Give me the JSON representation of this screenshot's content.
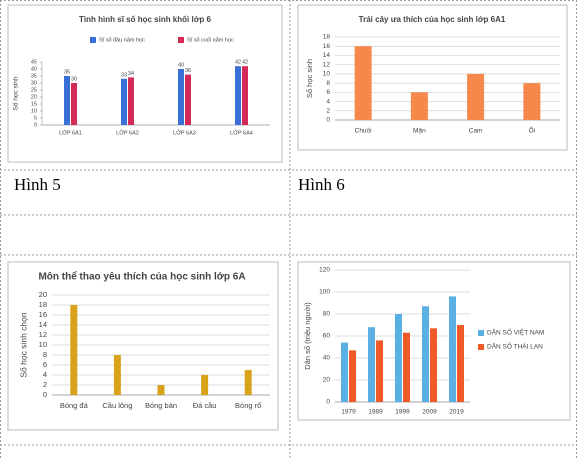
{
  "captions": [
    "Hình 5",
    "Hình 6"
  ],
  "chart_data": [
    {
      "type": "bar",
      "title": "Tình hình sĩ số học sinh khối lớp 6",
      "y_label": "Số học sinh",
      "categories": [
        "LỚP 6A1",
        "LỚP 6A2",
        "LỚP 6A3",
        "LỚP 6A4"
      ],
      "series": [
        {
          "name": "Sĩ số đầu năm học",
          "color": "#3a6fd8",
          "values": [
            35,
            33,
            40,
            42
          ]
        },
        {
          "name": "Sĩ số cuối năm học",
          "color": "#d42a5a",
          "values": [
            30,
            34,
            36,
            42
          ]
        }
      ],
      "ylim": [
        0,
        45
      ],
      "yticks": [
        0,
        5,
        10,
        15,
        20,
        25,
        30,
        35,
        40,
        45
      ],
      "grid": false,
      "legend": "top",
      "data_labels": true
    },
    {
      "type": "bar",
      "title": "Trái cây ưa thích của học sinh lớp 6A1",
      "y_label": "Số học sinh",
      "categories": [
        "Chuối",
        "Mận",
        "Cam",
        "Ổi"
      ],
      "values": [
        16,
        6,
        10,
        8
      ],
      "color": "#f5884a",
      "ylim": [
        0,
        18
      ],
      "yticks": [
        0,
        2,
        4,
        6,
        8,
        10,
        12,
        14,
        16,
        18
      ],
      "grid": true
    },
    {
      "type": "bar",
      "title": "Môn thể thao yêu thích của học sinh lớp 6A",
      "y_label": "Số học sinh chọn",
      "categories": [
        "Bóng đá",
        "Cầu lông",
        "Bóng bàn",
        "Đá cầu",
        "Bóng rổ"
      ],
      "values": [
        18,
        8,
        2,
        4,
        5
      ],
      "color": "#d9a21b",
      "ylim": [
        0,
        20
      ],
      "yticks": [
        0,
        2,
        4,
        6,
        8,
        10,
        12,
        14,
        16,
        18,
        20
      ],
      "grid": true
    },
    {
      "type": "bar",
      "y_label": "Dân số (triệu người)",
      "categories": [
        "1979",
        "1989",
        "1999",
        "2009",
        "2019"
      ],
      "series": [
        {
          "name": "DÂN SỐ VIỆT NAM",
          "color": "#5ab0e3",
          "values": [
            54,
            68,
            80,
            87,
            96
          ]
        },
        {
          "name": "DÂN SỐ THÁI LAN",
          "color": "#f05a28",
          "values": [
            47,
            56,
            63,
            67,
            70
          ]
        }
      ],
      "ylim": [
        0,
        120
      ],
      "yticks": [
        0,
        20,
        40,
        60,
        80,
        100,
        120
      ],
      "grid": true,
      "legend": "right"
    }
  ]
}
